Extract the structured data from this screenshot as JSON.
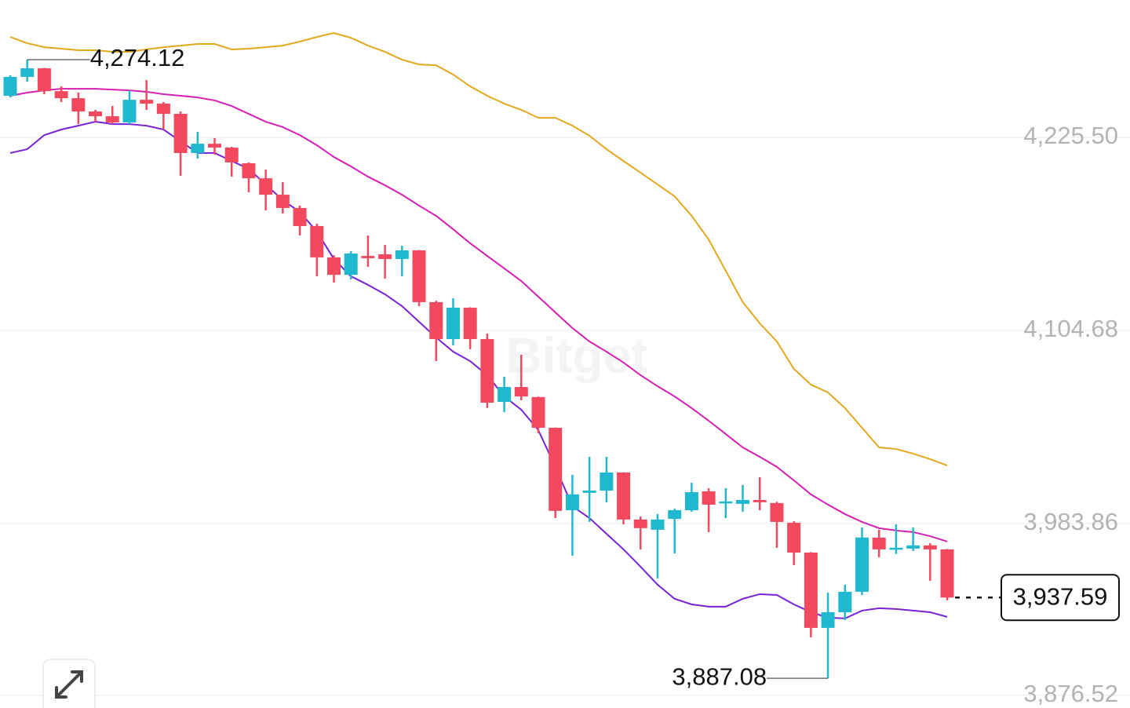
{
  "chart_data": {
    "type": "candlestick",
    "watermark": "Bitget",
    "ylim": [
      3868.47,
      4311.43
    ],
    "yticks": [
      {
        "value": 3876.52,
        "label": "3,876.52"
      },
      {
        "value": 3983.86,
        "label": "3,983.86"
      },
      {
        "value": 4104.68,
        "label": "4,104.68"
      },
      {
        "value": 4225.5,
        "label": "4,225.50"
      }
    ],
    "grid": true,
    "up_color": "#1fb8cf",
    "down_color": "#f2495f",
    "open": [
      4251.5,
      4263.3,
      4268.7,
      4254.4,
      4250.0,
      4241.7,
      4238.7,
      4234.8,
      4249.0,
      4246.6,
      4240.2,
      4215.7,
      4221.5,
      4219.1,
      4209.3,
      4199.9,
      4189.6,
      4181.3,
      4170.0,
      4150.4,
      4139.5,
      4151.3,
      4152.3,
      4149.4,
      4154.8,
      4122.4,
      4099.3,
      4118.9,
      4099.3,
      4060.0,
      4069.3,
      4063.0,
      4043.8,
      3992.2,
      4003.1,
      4004.5,
      4015.8,
      3986.4,
      3980.0,
      3986.8,
      3992.2,
      4004.0,
      3996.7,
      3996.2,
      3998.6,
      3996.7,
      3984.4,
      3965.7,
      3918.6,
      3928.4,
      3941.2,
      3975.1,
      3967.7,
      3968.2,
      3970.2,
      3967.7
    ],
    "high": [
      4264.3,
      4274.12,
      4269.0,
      4257.4,
      4253.5,
      4242.7,
      4245.1,
      4254.9,
      4261.3,
      4247.6,
      4241.7,
      4228.9,
      4225.0,
      4219.6,
      4209.8,
      4205.3,
      4197.5,
      4182.8,
      4171.5,
      4151.8,
      4154.3,
      4164.1,
      4158.2,
      4157.7,
      4155.0,
      4123.3,
      4124.8,
      4119.2,
      4102.7,
      4075.7,
      4089.5,
      4063.3,
      4044.0,
      4014.3,
      4025.6,
      4025.6,
      4016.0,
      3988.3,
      3989.8,
      3993.2,
      4009.4,
      4006.0,
      4006.0,
      4008.0,
      4012.9,
      3997.5,
      3985.4,
      3966.0,
      3940.7,
      3945.6,
      3981.4,
      3980.0,
      3983.4,
      3981.4,
      3971.6,
      3968.0
    ],
    "low": [
      4250.5,
      4260.3,
      4252.5,
      4247.6,
      4233.8,
      4235.3,
      4233.8,
      4233.8,
      4242.7,
      4230.4,
      4201.4,
      4212.2,
      4214.7,
      4200.9,
      4191.1,
      4179.8,
      4177.8,
      4164.1,
      4138.6,
      4134.6,
      4136.6,
      4144.5,
      4137.1,
      4138.6,
      4119.9,
      4085.5,
      4095.4,
      4092.9,
      4056.1,
      4053.6,
      4061.0,
      4040.4,
      3987.3,
      3963.8,
      3984.9,
      3997.2,
      3983.4,
      3967.7,
      3949.5,
      3965.2,
      3991.3,
      3978.5,
      3987.3,
      3991.3,
      3992.2,
      3968.7,
      3957.9,
      3912.7,
      3887.08,
      3923.5,
      3939.2,
      3962.8,
      3964.8,
      3966.7,
      3948.1,
      3935.8
    ],
    "close": [
      4263.3,
      4268.7,
      4254.4,
      4250.0,
      4241.7,
      4238.7,
      4234.8,
      4249.0,
      4246.6,
      4240.2,
      4215.7,
      4221.5,
      4219.1,
      4209.8,
      4199.9,
      4189.6,
      4181.3,
      4170.0,
      4150.4,
      4139.5,
      4152.8,
      4149.9,
      4149.4,
      4154.8,
      4122.4,
      4099.3,
      4118.9,
      4099.3,
      4059.5,
      4069.3,
      4063.4,
      4043.8,
      3991.8,
      4002.1,
      4004.5,
      4015.8,
      3986.4,
      3981.0,
      3986.4,
      3992.2,
      4003.5,
      3995.7,
      3997.7,
      3998.6,
      3997.2,
      3984.9,
      3965.7,
      3918.6,
      3928.4,
      3941.2,
      3975.1,
      3967.7,
      3968.7,
      3970.2,
      3967.7,
      3937.59
    ],
    "series": [
      {
        "color": "#e3a81e",
        "values": [
          4288.3,
          4284.4,
          4281.9,
          4281.0,
          4280.0,
          4280.0,
          4279.0,
          4279.0,
          4280.5,
          4281.9,
          4282.9,
          4283.9,
          4283.9,
          4280.5,
          4281.0,
          4281.9,
          4282.9,
          4285.4,
          4288.3,
          4290.8,
          4287.8,
          4282.9,
          4279.0,
          4274.1,
          4271.1,
          4270.6,
          4264.8,
          4257.4,
          4251.5,
          4246.6,
          4242.7,
          4237.7,
          4237.7,
          4232.8,
          4226.5,
          4218.1,
          4210.7,
          4203.4,
          4196.0,
          4188.6,
          4176.4,
          4161.6,
          4142.0,
          4122.4,
          4109.1,
          4097.8,
          4080.6,
          4070.8,
          4065.9,
          4056.1,
          4043.8,
          4031.5,
          4030.5,
          4027.6,
          4024.2,
          4020.2
        ]
      },
      {
        "color": "#d61fb4",
        "values": [
          4251.5,
          4253.5,
          4254.9,
          4255.9,
          4255.9,
          4255.9,
          4255.4,
          4254.9,
          4254.0,
          4252.5,
          4251.5,
          4250.5,
          4248.6,
          4245.1,
          4240.2,
          4235.3,
          4231.9,
          4226.9,
          4220.6,
          4213.2,
          4207.3,
          4200.9,
          4195.5,
          4189.6,
          4182.8,
          4176.4,
          4168.0,
          4159.2,
          4151.3,
          4143.5,
          4135.6,
          4125.8,
          4116.0,
          4106.2,
          4097.8,
          4091.4,
          4084.6,
          4076.7,
          4069.8,
          4063.4,
          4056.1,
          4048.2,
          4039.9,
          4031.5,
          4025.6,
          4019.3,
          4010.9,
          4002.1,
          3995.7,
          3989.8,
          3984.9,
          3981.0,
          3979.5,
          3978.5,
          3976.0,
          3972.6
        ]
      },
      {
        "color": "#7a22d6",
        "values": [
          4215.7,
          4218.1,
          4226.9,
          4230.4,
          4232.8,
          4235.3,
          4233.8,
          4233.8,
          4232.8,
          4230.4,
          4223.0,
          4215.7,
          4215.7,
          4210.7,
          4205.8,
          4196.0,
          4186.2,
          4178.8,
          4166.6,
          4149.4,
          4138.6,
          4133.2,
          4127.3,
          4119.9,
          4110.1,
          4100.3,
          4091.4,
          4085.5,
          4076.7,
          4063.4,
          4055.1,
          4042.3,
          4019.3,
          3994.7,
          3987.3,
          3977.5,
          3967.7,
          3956.9,
          3945.6,
          3936.8,
          3933.3,
          3931.9,
          3931.9,
          3936.8,
          3939.7,
          3939.2,
          3933.3,
          3928.4,
          3925.0,
          3924.5,
          3929.4,
          3930.9,
          3930.4,
          3929.4,
          3928.4,
          3925.5
        ]
      }
    ],
    "annotations": {
      "high_label": "4,274.12",
      "low_label": "3,887.08",
      "last_price_label": "3,937.59"
    }
  }
}
